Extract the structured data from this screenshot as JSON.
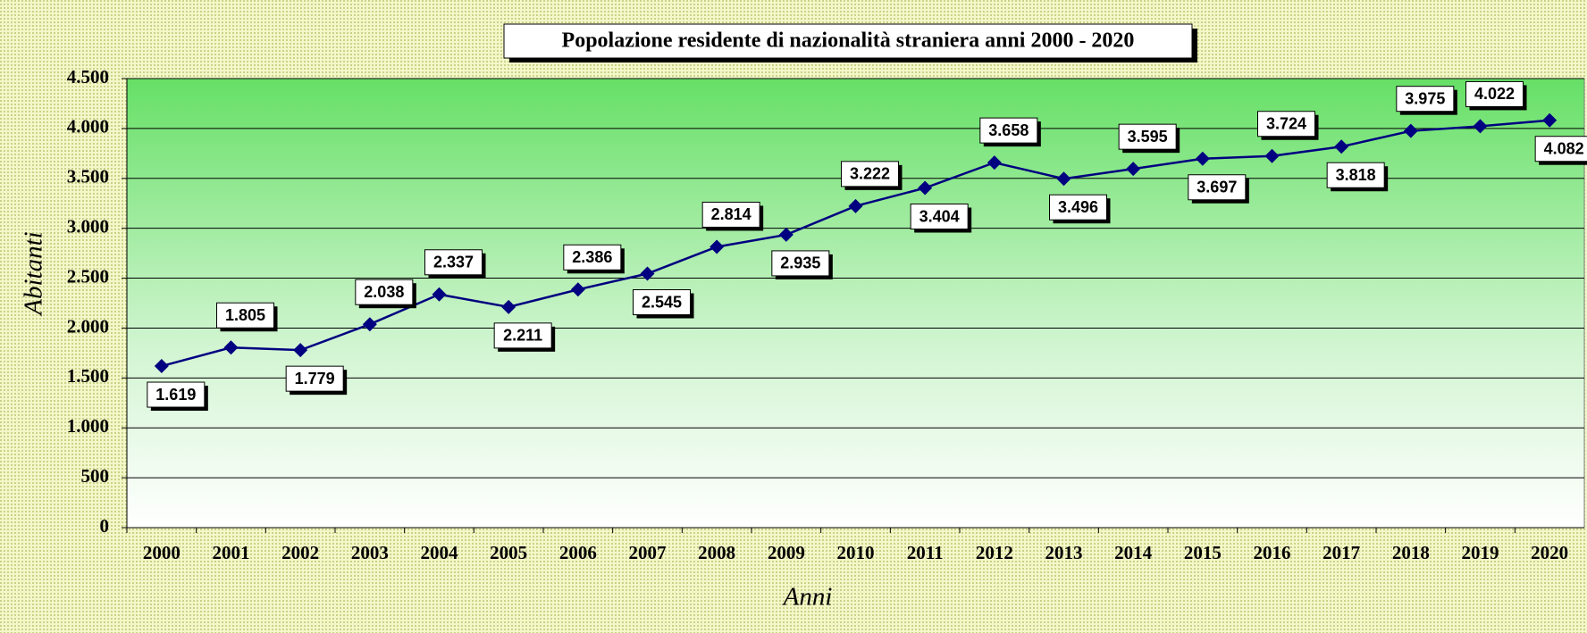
{
  "chart_data": {
    "type": "line",
    "title": "Popolazione residente di nazionalità straniera  anni 2000 - 2020",
    "xlabel": "Anni",
    "ylabel": "Abitanti",
    "categories": [
      "2000",
      "2001",
      "2002",
      "2003",
      "2004",
      "2005",
      "2006",
      "2007",
      "2008",
      "2009",
      "2010",
      "2011",
      "2012",
      "2013",
      "2014",
      "2015",
      "2016",
      "2017",
      "2018",
      "2019",
      "2020"
    ],
    "series": [
      {
        "name": "Abitanti",
        "color": "#000080",
        "values": [
          1619,
          1805,
          1779,
          2038,
          2337,
          2211,
          2386,
          2545,
          2814,
          2935,
          3222,
          3404,
          3658,
          3496,
          3595,
          3697,
          3724,
          3818,
          3975,
          4022,
          4082
        ],
        "value_labels": [
          "1.619",
          "1.805",
          "1.779",
          "2.038",
          "2.337",
          "2.211",
          "2.386",
          "2.545",
          "2.814",
          "2.935",
          "3.222",
          "3.404",
          "3.658",
          "3.496",
          "3.595",
          "3.697",
          "3.724",
          "3.818",
          "3.975",
          "4.022",
          "4.082"
        ]
      }
    ],
    "ylim": [
      0,
      4500
    ],
    "yticks": [
      0,
      500,
      {
        "value": 1000,
        "label": "1.000"
      },
      {
        "value": 1500,
        "label": "1.500"
      },
      {
        "value": 2000,
        "label": "2.000"
      },
      {
        "value": 2500,
        "label": "2.500"
      },
      {
        "value": 3000,
        "label": "3.000"
      },
      {
        "value": 3500,
        "label": "3.500"
      },
      {
        "value": 4000,
        "label": "4.000"
      },
      {
        "value": 4500,
        "label": "4.500"
      }
    ],
    "grid": true
  }
}
